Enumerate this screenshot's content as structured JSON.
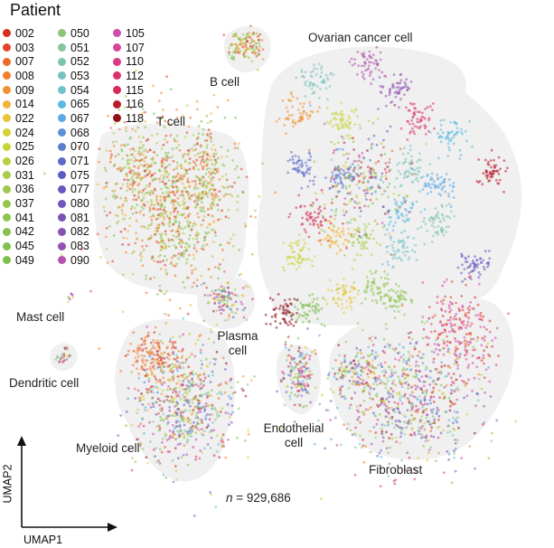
{
  "chart_data": {
    "type": "scatter",
    "legend_title": "Patient",
    "legend_placement": "top-left",
    "xlabel": "UMAP1",
    "ylabel": "UMAP2",
    "grid": false,
    "annotation_prefix": "n",
    "annotation_value": "= 929,686",
    "series": [
      {
        "name": "002",
        "color": "#d7301f"
      },
      {
        "name": "003",
        "color": "#e4452a"
      },
      {
        "name": "007",
        "color": "#ec6a2a"
      },
      {
        "name": "008",
        "color": "#f07f2c"
      },
      {
        "name": "009",
        "color": "#f19232"
      },
      {
        "name": "014",
        "color": "#f4b43a"
      },
      {
        "name": "022",
        "color": "#e8c637"
      },
      {
        "name": "024",
        "color": "#d7d030"
      },
      {
        "name": "025",
        "color": "#c8d438"
      },
      {
        "name": "026",
        "color": "#b5d13e"
      },
      {
        "name": "031",
        "color": "#a9cc49"
      },
      {
        "name": "036",
        "color": "#9ec94e"
      },
      {
        "name": "037",
        "color": "#98c450"
      },
      {
        "name": "041",
        "color": "#8fc44f"
      },
      {
        "name": "042",
        "color": "#87c24c"
      },
      {
        "name": "045",
        "color": "#80c24b"
      },
      {
        "name": "049",
        "color": "#7cc04a"
      },
      {
        "name": "050",
        "color": "#8ec378"
      },
      {
        "name": "051",
        "color": "#86c698"
      },
      {
        "name": "052",
        "color": "#7fc4ac"
      },
      {
        "name": "053",
        "color": "#7ac2bd"
      },
      {
        "name": "054",
        "color": "#72c2cc"
      },
      {
        "name": "065",
        "color": "#5cb9de"
      },
      {
        "name": "067",
        "color": "#5aa8e4"
      },
      {
        "name": "068",
        "color": "#5b92d8"
      },
      {
        "name": "070",
        "color": "#5b7fcf"
      },
      {
        "name": "071",
        "color": "#5a6bc8"
      },
      {
        "name": "075",
        "color": "#5c5cc2"
      },
      {
        "name": "077",
        "color": "#6656bf"
      },
      {
        "name": "080",
        "color": "#6f55bc"
      },
      {
        "name": "081",
        "color": "#7a52b6"
      },
      {
        "name": "082",
        "color": "#8552b4"
      },
      {
        "name": "083",
        "color": "#9452b2"
      },
      {
        "name": "090",
        "color": "#b352ad"
      },
      {
        "name": "105",
        "color": "#cd4fac"
      },
      {
        "name": "107",
        "color": "#d8459c"
      },
      {
        "name": "110",
        "color": "#dc3a86"
      },
      {
        "name": "112",
        "color": "#dc306f"
      },
      {
        "name": "115",
        "color": "#d42a56"
      },
      {
        "name": "116",
        "color": "#b81c2c"
      },
      {
        "name": "118",
        "color": "#8e1119"
      }
    ],
    "clusters": [
      {
        "label": "B cell"
      },
      {
        "label": "Ovarian cancer cell"
      },
      {
        "label": "T cell"
      },
      {
        "label": "Mast cell"
      },
      {
        "label": "Plasma cell"
      },
      {
        "label": "Dendritic cell"
      },
      {
        "label": "Endothelial cell"
      },
      {
        "label": "Myeloid cell"
      },
      {
        "label": "Fibroblast"
      }
    ]
  }
}
